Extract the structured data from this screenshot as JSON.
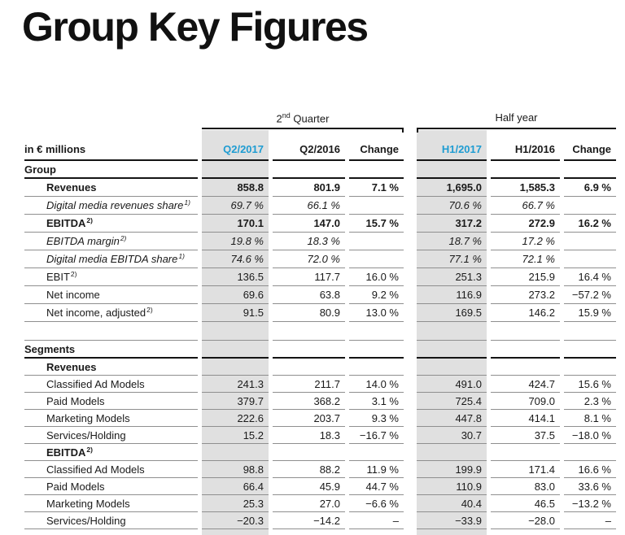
{
  "page": {
    "title": "Group Key Figures"
  },
  "colors": {
    "accent_blue": "#1e9cd2",
    "column_highlight_gray": "#e0e0e0",
    "rule_dark": "#141414",
    "rule_light": "#8f8f8f"
  },
  "table": {
    "unit_label": "in € millions",
    "groups": [
      {
        "label": "2nd Quarter",
        "base": "2",
        "sup": "nd",
        "rest": " Quarter"
      },
      {
        "label": "Half year"
      }
    ],
    "columns": [
      {
        "label": "Q2/2017",
        "highlight": true
      },
      {
        "label": "Q2/2016",
        "highlight": false
      },
      {
        "label": "Change",
        "highlight": false
      },
      {
        "label": "H1/2017",
        "highlight": true
      },
      {
        "label": "H1/2016",
        "highlight": false
      },
      {
        "label": "Change",
        "highlight": false
      }
    ],
    "rows": [
      {
        "type": "section",
        "label": "Group"
      },
      {
        "type": "data",
        "label": "Revenues",
        "style": "bold",
        "values": [
          "858.8",
          "801.9",
          "7.1 %",
          "1,695.0",
          "1,585.3",
          "6.9 %"
        ]
      },
      {
        "type": "data",
        "label": "Digital media revenues share",
        "sup": "1)",
        "style": "italic",
        "values": [
          "69.7 %",
          "66.1 %",
          "",
          "70.6 %",
          "66.7 %",
          ""
        ]
      },
      {
        "type": "data",
        "label": "EBITDA",
        "sup": "2)",
        "style": "bold",
        "values": [
          "170.1",
          "147.0",
          "15.7 %",
          "317.2",
          "272.9",
          "16.2 %"
        ]
      },
      {
        "type": "data",
        "label": "EBITDA margin",
        "sup": "2)",
        "style": "italic",
        "values": [
          "19.8 %",
          "18.3 %",
          "",
          "18.7 %",
          "17.2 %",
          ""
        ]
      },
      {
        "type": "data",
        "label": "Digital media EBITDA share",
        "sup": "1)",
        "style": "italic",
        "values": [
          "74.6 %",
          "72.0 %",
          "",
          "77.1 %",
          "72.1 %",
          ""
        ]
      },
      {
        "type": "data",
        "label": "EBIT",
        "sup": "2)",
        "values": [
          "136.5",
          "117.7",
          "16.0 %",
          "251.3",
          "215.9",
          "16.4 %"
        ]
      },
      {
        "type": "data",
        "label": "Net income",
        "values": [
          "69.6",
          "63.8",
          "9.2 %",
          "116.9",
          "273.2",
          "−57.2 %"
        ]
      },
      {
        "type": "data",
        "label": "Net income, adjusted",
        "sup": "2)",
        "values": [
          "91.5",
          "80.9",
          "13.0 %",
          "169.5",
          "146.2",
          "15.9 %"
        ]
      },
      {
        "type": "spacer"
      },
      {
        "type": "section",
        "label": "Segments"
      },
      {
        "type": "subheader",
        "label": "Revenues"
      },
      {
        "type": "data",
        "label": "Classified Ad Models",
        "values": [
          "241.3",
          "211.7",
          "14.0 %",
          "491.0",
          "424.7",
          "15.6 %"
        ]
      },
      {
        "type": "data",
        "label": "Paid Models",
        "values": [
          "379.7",
          "368.2",
          "3.1 %",
          "725.4",
          "709.0",
          "2.3 %"
        ]
      },
      {
        "type": "data",
        "label": "Marketing Models",
        "values": [
          "222.6",
          "203.7",
          "9.3 %",
          "447.8",
          "414.1",
          "8.1 %"
        ]
      },
      {
        "type": "data",
        "label": "Services/Holding",
        "values": [
          "15.2",
          "18.3",
          "−16.7 %",
          "30.7",
          "37.5",
          "−18.0 %"
        ]
      },
      {
        "type": "subheader",
        "label": "EBITDA",
        "sup": "2)"
      },
      {
        "type": "data",
        "label": "Classified Ad Models",
        "values": [
          "98.8",
          "88.2",
          "11.9 %",
          "199.9",
          "171.4",
          "16.6 %"
        ]
      },
      {
        "type": "data",
        "label": "Paid Models",
        "values": [
          "66.4",
          "45.9",
          "44.7 %",
          "110.9",
          "83.0",
          "33.6 %"
        ]
      },
      {
        "type": "data",
        "label": "Marketing Models",
        "values": [
          "25.3",
          "27.0",
          "−6.6 %",
          "40.4",
          "46.5",
          "−13.2 %"
        ]
      },
      {
        "type": "data",
        "label": "Services/Holding",
        "values": [
          "−20.3",
          "−14.2",
          "–",
          "−33.9",
          "−28.0",
          "–"
        ]
      }
    ]
  }
}
